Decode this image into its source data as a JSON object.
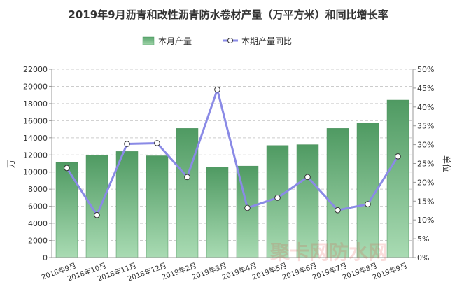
{
  "chart_data": {
    "type": "bar+line",
    "title": "2019年9月沥青和改性沥青防水卷材产量（万平方米）和同比增长率",
    "categories": [
      "2018年9月",
      "2018年10月",
      "2018年11月",
      "2018年12月",
      "2019年2月",
      "2019年3月",
      "2019年4月",
      "2019年5月",
      "2019年6月",
      "2019年7月",
      "2019年8月",
      "2019年9月"
    ],
    "series": [
      {
        "name": "本月产量",
        "type": "bar",
        "axis": "left",
        "color": "#5faa6f",
        "values": [
          11100,
          12000,
          12400,
          11900,
          15100,
          10600,
          10700,
          13100,
          13200,
          15100,
          15700,
          18400
        ]
      },
      {
        "name": "本期产量同比",
        "type": "line",
        "axis": "right",
        "color": "#8a8ae6",
        "values": [
          23.8,
          11.3,
          30.2,
          30.4,
          21.4,
          44.6,
          13.2,
          15.9,
          21.4,
          12.6,
          14.2,
          26.9
        ]
      }
    ],
    "y_left": {
      "label": "万",
      "min": 0,
      "max": 22000,
      "step": 2000,
      "ticks": [
        "0",
        "2000",
        "4000",
        "6000",
        "8000",
        "10000",
        "12000",
        "14000",
        "16000",
        "18000",
        "20000",
        "22000"
      ]
    },
    "y_right": {
      "label": "单位",
      "min": 0,
      "max": 50,
      "step": 5,
      "ticks": [
        "0%",
        "5%",
        "10%",
        "15%",
        "20%",
        "25%",
        "30%",
        "35%",
        "40%",
        "45%",
        "50%"
      ]
    },
    "grid": true,
    "legend_position": "top-center",
    "watermark": "聚卡网防水网"
  }
}
